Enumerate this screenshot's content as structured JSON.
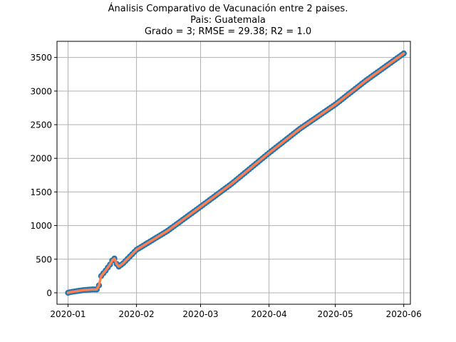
{
  "chart_data": {
    "type": "scatter",
    "title_lines": [
      "Ánalisis Comparativo de Vacunación entre 2 paises.",
      "Pais: Guatemala",
      "Grado = 3; RMSE = 29.38; R2 = 1.0"
    ],
    "xlabel": "",
    "ylabel": "",
    "x_type": "date",
    "xlim": [
      "2019-12-27",
      "2020-06-04"
    ],
    "ylim": [
      -170,
      3740
    ],
    "x_ticks": [
      {
        "date": "2020-01-01",
        "label": "2020-01"
      },
      {
        "date": "2020-02-01",
        "label": "2020-02"
      },
      {
        "date": "2020-03-01",
        "label": "2020-03"
      },
      {
        "date": "2020-04-01",
        "label": "2020-04"
      },
      {
        "date": "2020-05-01",
        "label": "2020-05"
      },
      {
        "date": "2020-06-01",
        "label": "2020-06"
      }
    ],
    "y_ticks": [
      0,
      500,
      1000,
      1500,
      2000,
      2500,
      3000,
      3500
    ],
    "grid": true,
    "legend": "none",
    "colors": {
      "points": "#1f77b4",
      "fit": "#ff7f50"
    },
    "series": [
      {
        "kind": "scatter",
        "points": [
          {
            "date": "2020-01-01",
            "y": 0
          },
          {
            "date": "2020-01-02",
            "y": 10
          },
          {
            "date": "2020-01-04",
            "y": 20
          },
          {
            "date": "2020-01-06",
            "y": 30
          },
          {
            "date": "2020-01-08",
            "y": 40
          },
          {
            "date": "2020-01-10",
            "y": 45
          },
          {
            "date": "2020-01-12",
            "y": 50
          },
          {
            "date": "2020-01-14",
            "y": 50
          },
          {
            "date": "2020-01-15",
            "y": 110
          },
          {
            "date": "2020-01-16",
            "y": 250
          },
          {
            "date": "2020-01-18",
            "y": 330
          },
          {
            "date": "2020-01-20",
            "y": 420
          },
          {
            "date": "2020-01-21",
            "y": 480
          },
          {
            "date": "2020-01-22",
            "y": 510
          },
          {
            "date": "2020-01-23",
            "y": 430
          },
          {
            "date": "2020-01-24",
            "y": 390
          },
          {
            "date": "2020-01-26",
            "y": 440
          },
          {
            "date": "2020-02-01",
            "y": 640
          },
          {
            "date": "2020-02-15",
            "y": 920
          },
          {
            "date": "2020-03-01",
            "y": 1280
          },
          {
            "date": "2020-03-15",
            "y": 1620
          },
          {
            "date": "2020-04-01",
            "y": 2080
          },
          {
            "date": "2020-04-15",
            "y": 2440
          },
          {
            "date": "2020-05-01",
            "y": 2800
          },
          {
            "date": "2020-05-15",
            "y": 3160
          },
          {
            "date": "2020-06-01",
            "y": 3560
          }
        ]
      },
      {
        "kind": "line",
        "points": [
          {
            "date": "2020-01-01",
            "y": 0
          },
          {
            "date": "2020-01-02",
            "y": 10
          },
          {
            "date": "2020-01-04",
            "y": 20
          },
          {
            "date": "2020-01-06",
            "y": 30
          },
          {
            "date": "2020-01-08",
            "y": 40
          },
          {
            "date": "2020-01-10",
            "y": 45
          },
          {
            "date": "2020-01-12",
            "y": 50
          },
          {
            "date": "2020-01-14",
            "y": 50
          },
          {
            "date": "2020-01-15",
            "y": 110
          },
          {
            "date": "2020-01-16",
            "y": 250
          },
          {
            "date": "2020-01-18",
            "y": 330
          },
          {
            "date": "2020-01-20",
            "y": 420
          },
          {
            "date": "2020-01-21",
            "y": 480
          },
          {
            "date": "2020-01-22",
            "y": 510
          },
          {
            "date": "2020-01-23",
            "y": 430
          },
          {
            "date": "2020-01-24",
            "y": 390
          },
          {
            "date": "2020-01-26",
            "y": 440
          },
          {
            "date": "2020-02-01",
            "y": 640
          },
          {
            "date": "2020-02-15",
            "y": 920
          },
          {
            "date": "2020-03-01",
            "y": 1280
          },
          {
            "date": "2020-03-15",
            "y": 1620
          },
          {
            "date": "2020-04-01",
            "y": 2080
          },
          {
            "date": "2020-04-15",
            "y": 2440
          },
          {
            "date": "2020-05-01",
            "y": 2800
          },
          {
            "date": "2020-05-15",
            "y": 3160
          },
          {
            "date": "2020-06-01",
            "y": 3560
          }
        ]
      }
    ]
  }
}
